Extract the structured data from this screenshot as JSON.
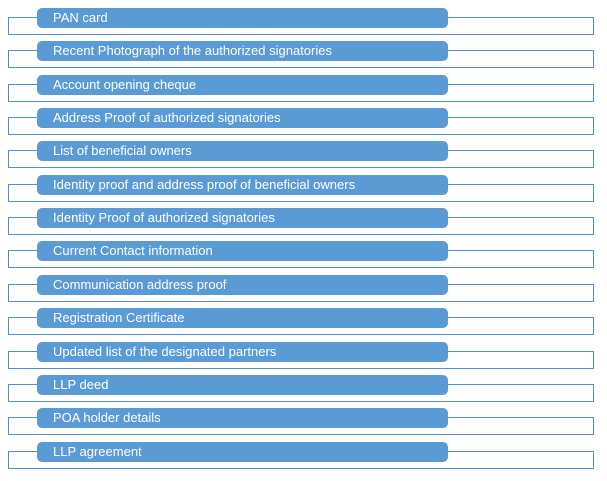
{
  "items": [
    {
      "label": "PAN card"
    },
    {
      "label": "Recent Photograph of the authorized signatories"
    },
    {
      "label": "Account opening cheque"
    },
    {
      "label": "Address Proof of authorized signatories"
    },
    {
      "label": "List of beneficial owners"
    },
    {
      "label": "Identity proof and address proof of beneficial owners"
    },
    {
      "label": "Identity Proof of authorized signatories"
    },
    {
      "label": "Current Contact information"
    },
    {
      "label": "Communication address proof"
    },
    {
      "label": "Registration Certificate"
    },
    {
      "label": "Updated list of the designated partners"
    },
    {
      "label": "LLP deed"
    },
    {
      "label": "POA holder details"
    },
    {
      "label": "LLP agreement"
    }
  ],
  "colors": {
    "pill_fill": "#5b9bd5",
    "outline": "#4f8fcf",
    "text": "#ffffff"
  }
}
